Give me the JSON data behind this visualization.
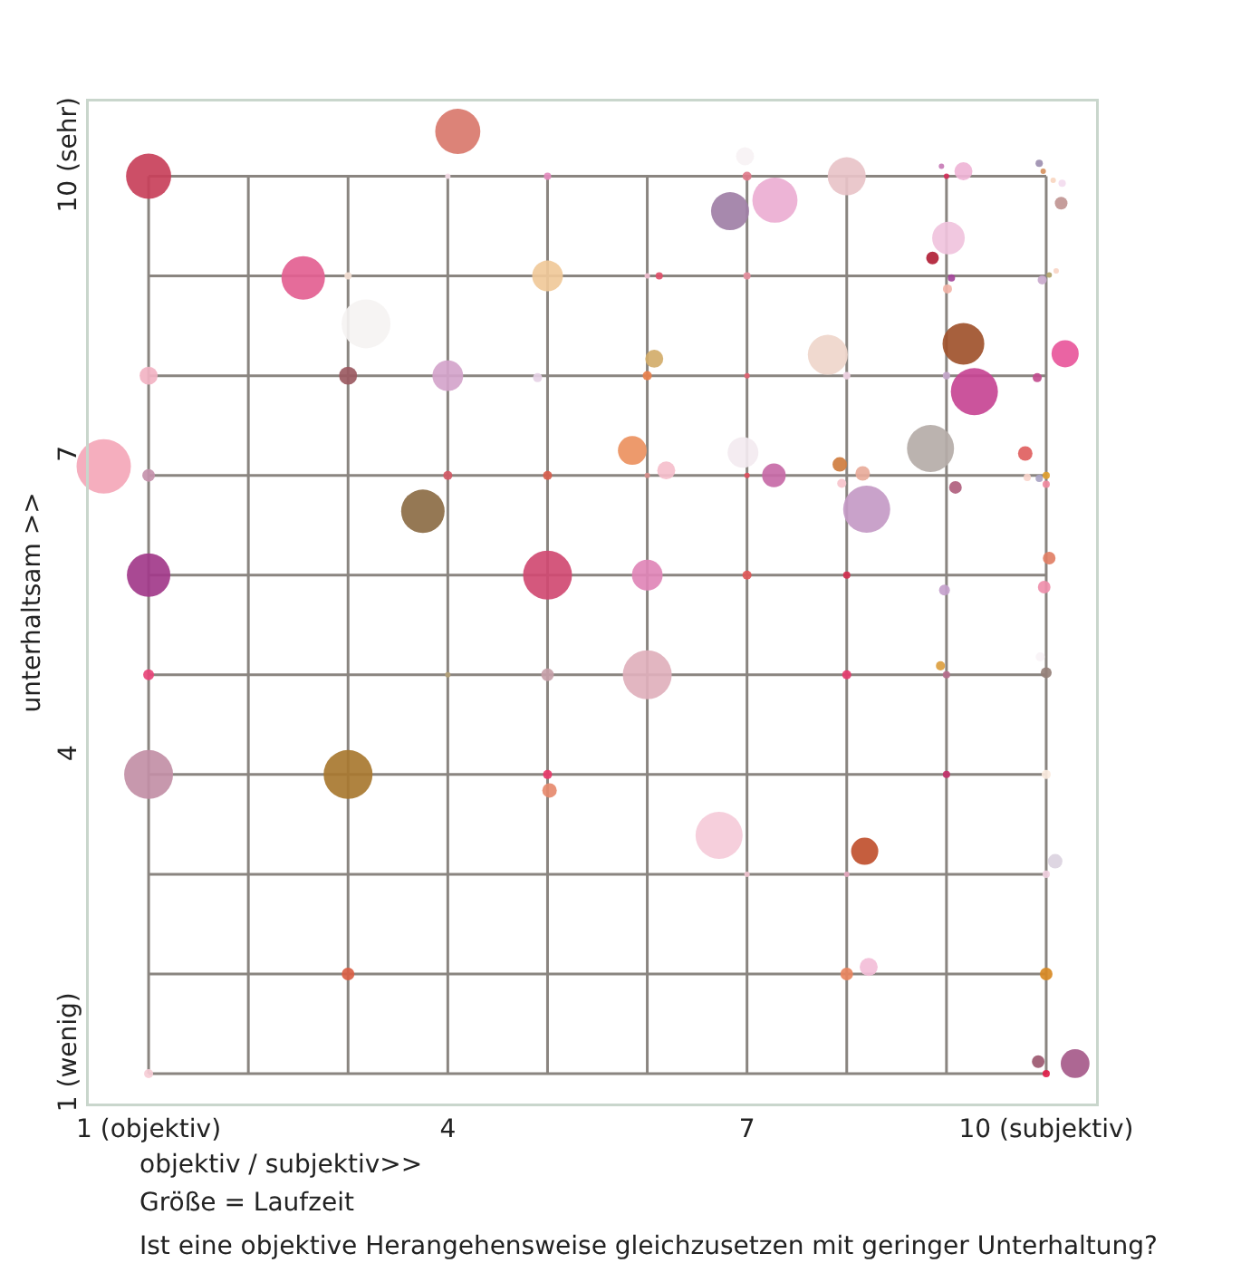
{
  "chart_data": {
    "type": "bubble",
    "xlabel": "objektiv / subjektiv>>",
    "ylabel": "unterhaltsam >>",
    "annotations": [
      "Größe = Laufzeit",
      "Ist eine objektive Herangehensweise gleichzusetzen mit geringer Unterhaltung?"
    ],
    "xlim": [
      0.4,
      10.5
    ],
    "ylim": [
      0.7,
      10.75
    ],
    "xticks": [
      {
        "value": 1,
        "label": "1 (objektiv)"
      },
      {
        "value": 2,
        "label": null
      },
      {
        "value": 3,
        "label": null
      },
      4,
      {
        "value": 5,
        "label": null
      },
      {
        "value": 6,
        "label": null
      },
      7,
      {
        "value": 8,
        "label": null
      },
      {
        "value": 9,
        "label": null
      },
      {
        "value": 10,
        "label": "10 (subjektiv)"
      }
    ],
    "yticks": [
      {
        "value": 1,
        "label": "1 (wenig)"
      },
      {
        "value": 2,
        "label": null
      },
      {
        "value": 3,
        "label": null
      },
      4,
      {
        "value": 5,
        "label": null
      },
      {
        "value": 6,
        "label": null
      },
      7,
      {
        "value": 8,
        "label": null
      },
      {
        "value": 9,
        "label": null
      },
      {
        "value": 10,
        "label": "10 (sehr)"
      }
    ],
    "grid": true,
    "marker": "circle",
    "series": [
      {
        "x": [
          1,
          4.1,
          4,
          5,
          2.55,
          3,
          5,
          3.18,
          1,
          3,
          4,
          4.9,
          0.55,
          1,
          4,
          5,
          3.75,
          1,
          5,
          6.98,
          7,
          6.83,
          7.28,
          8,
          8.95,
          9,
          9.17,
          9.93,
          9.97,
          10.07,
          10.16,
          10.15,
          9.02,
          8.86,
          6.12,
          6,
          7,
          9.05,
          9.01,
          9.96,
          10.03,
          10.1,
          6.07,
          6,
          7,
          7.81,
          8,
          9.17,
          9,
          9.28,
          10.19,
          9.91,
          5.85,
          6.19,
          6,
          6.96,
          7,
          7.27,
          7.93,
          8.16,
          7.95,
          8.84,
          8.2,
          9.09,
          9.79,
          9.81,
          9.93,
          10,
          10,
          6,
          7,
          8,
          10.03,
          9.98,
          8.98,
          1,
          4,
          5,
          1,
          3,
          5,
          5.02,
          3,
          1,
          6,
          8,
          8.94,
          9,
          9.94,
          10,
          9,
          10,
          6.72,
          8.18,
          7,
          8,
          10.09,
          10,
          8,
          8.22,
          10,
          9.92,
          10,
          10.29
        ],
        "values": [
          10,
          10.45,
          10,
          10,
          8.98,
          9,
          9,
          8.52,
          8,
          8,
          8,
          7.98,
          7.09,
          7,
          7,
          7,
          6.64,
          6,
          6,
          10.2,
          10,
          9.65,
          9.76,
          10,
          10.1,
          10,
          10.05,
          10.13,
          10.05,
          9.96,
          9.93,
          9.73,
          9.38,
          9.18,
          9,
          9,
          9,
          8.98,
          8.87,
          8.96,
          9.01,
          9.05,
          8.17,
          8,
          8,
          8.21,
          8,
          8.32,
          8,
          7.84,
          8.22,
          7.98,
          7.25,
          7.05,
          7,
          7.23,
          7,
          7,
          7.11,
          7.02,
          6.92,
          7.27,
          6.66,
          6.88,
          7.22,
          6.98,
          6.97,
          7,
          6.91,
          6,
          6,
          6,
          6.17,
          5.88,
          5.85,
          5,
          5,
          5,
          4,
          4,
          4,
          3.84,
          2,
          1,
          5,
          5,
          5.09,
          5,
          5.18,
          5.02,
          4,
          4,
          3.39,
          3.23,
          3,
          3,
          3.13,
          3,
          2,
          2.07,
          2,
          1.12,
          1,
          1.1
        ],
        "sizes": [
          0.69,
          0.69,
          0.01,
          0.018,
          0.64,
          0.018,
          0.32,
          0.81,
          0.11,
          0.11,
          0.32,
          0.028,
          1,
          0.054,
          0.028,
          0.028,
          0.64,
          0.64,
          0.81,
          0.11,
          0.028,
          0.49,
          0.69,
          0.49,
          0.01,
          0.01,
          0.11,
          0.018,
          0.01,
          0.01,
          0.018,
          0.054,
          0.36,
          0.054,
          0.018,
          0.01,
          0.018,
          0.018,
          0.028,
          0.028,
          0.01,
          0.01,
          0.11,
          0.028,
          0.01,
          0.54,
          0.018,
          0.59,
          0.018,
          0.75,
          0.25,
          0.028,
          0.28,
          0.11,
          0.01,
          0.32,
          0.01,
          0.19,
          0.071,
          0.071,
          0.028,
          0.75,
          0.75,
          0.054,
          0.071,
          0.018,
          0.018,
          0.018,
          0.018,
          0.32,
          0.028,
          0.018,
          0.054,
          0.054,
          0.04,
          0.04,
          0.01,
          0.054,
          0.81,
          0.81,
          0.028,
          0.071,
          0.054,
          0.028,
          0.81,
          0.028,
          0.028,
          0.018,
          0.028,
          0.04,
          0.018,
          0.028,
          0.75,
          0.25,
          0.01,
          0.01,
          0.071,
          0.018,
          0.054,
          0.11,
          0.054,
          0.054,
          0.018,
          0.28
        ],
        "colors": [
          "#c8405a",
          "#d9786d",
          "#f5dde8",
          "#e48cbf",
          "#e35f91",
          "#f4e1d5",
          "#f0c999",
          "#f5f3f2",
          "#f2b3c3",
          "#9b5a62",
          "#d4a4cb",
          "#e6d3e6",
          "#f4a7b8",
          "#c693ac",
          "#d35a66",
          "#d8604e",
          "#8c6d45",
          "#a23a8a",
          "#d04a72",
          "#f7f2f4",
          "#e07a8a",
          "#a07fa6",
          "#ebaed3",
          "#e8c3c8",
          "#c77bb6",
          "#d2305a",
          "#efb4d6",
          "#9d8fb0",
          "#d69160",
          "#f8d6c0",
          "#f3dcef",
          "#c09593",
          "#f0c3dd",
          "#b11f36",
          "#e0506a",
          "#f1bfd0",
          "#e68fa0",
          "#a3459a",
          "#f2b4a8",
          "#c9a9cc",
          "#b1a36a",
          "#f8d5c5",
          "#d3ad6a",
          "#e9814d",
          "#e26372",
          "#efd6cb",
          "#f1d5e5",
          "#a0522d",
          "#c6a8cc",
          "#c74594",
          "#e8579b",
          "#c24d8f",
          "#ec9160",
          "#f5bfcc",
          "#d78f8c",
          "#f3eaf0",
          "#e0505f",
          "#c76aa7",
          "#cf7d3f",
          "#e8ab9a",
          "#f7c4cc",
          "#b5aca8",
          "#c49ac5",
          "#b0607e",
          "#e06060",
          "#f9d5cc",
          "#a9a4c4",
          "#e0a030",
          "#f08aa0",
          "#df86b7",
          "#e05858",
          "#d3304f",
          "#e17f65",
          "#ef8fab",
          "#c4a1cc",
          "#e8457a",
          "#b4a27a",
          "#c5a0a8",
          "#c28fa6",
          "#a87830",
          "#e83a6a",
          "#e68a6e",
          "#d96045",
          "#f6cdd6",
          "#e0b0bc",
          "#e63c6e",
          "#dca040",
          "#b66e8c",
          "#f8f3f6",
          "#958078",
          "#c2326a",
          "#fbece0",
          "#f5cbd9",
          "#c0502e",
          "#f0c4d0",
          "#e6a9c0",
          "#dbd3e0",
          "#f0d0e0",
          "#e88560",
          "#f3bed8",
          "#d88a24",
          "#9c5870",
          "#e0204a",
          "#a65a8a"
        ]
      }
    ]
  }
}
